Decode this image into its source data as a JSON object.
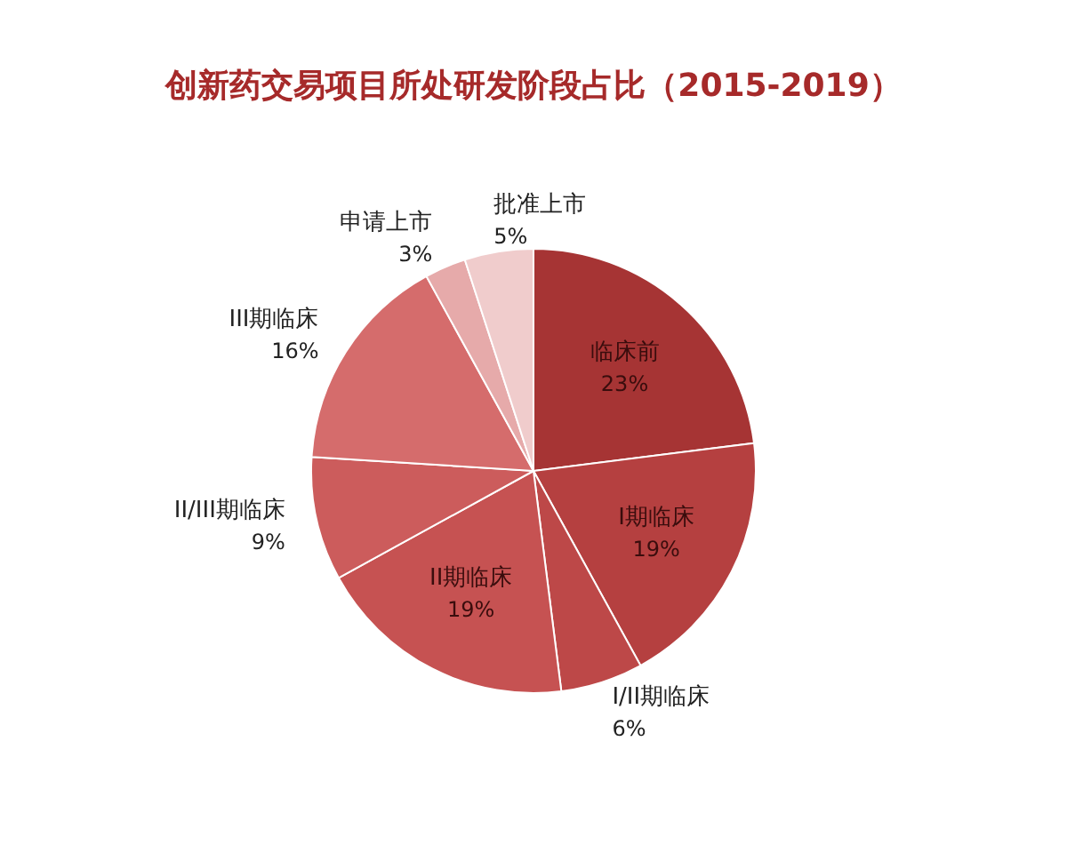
{
  "chart_data": {
    "type": "pie",
    "title": "创新药交易项目所处研发阶段占比（2015-2019）",
    "categories": [
      "临床前",
      "I期临床",
      "I/II期临床",
      "II期临床",
      "II/III期临床",
      "III期临床",
      "申请上市",
      "批准上市"
    ],
    "values": [
      23,
      19,
      6,
      19,
      9,
      16,
      3,
      5
    ],
    "colors": [
      "#a63434",
      "#b54040",
      "#bd4848",
      "#c65252",
      "#cc5c5c",
      "#d56c6c",
      "#e6aaaa",
      "#f0cccc"
    ],
    "value_labels": [
      "23%",
      "19%",
      "6%",
      "19%",
      "9%",
      "16%",
      "3%",
      "5%"
    ]
  }
}
